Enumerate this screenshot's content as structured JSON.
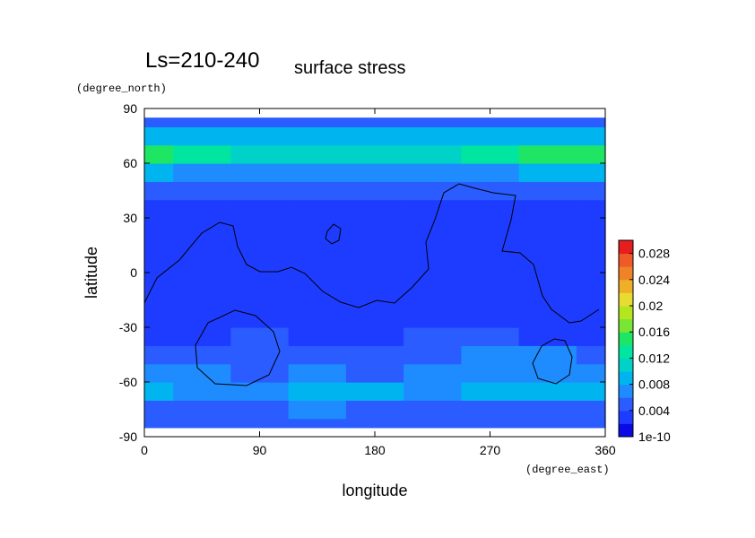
{
  "chart_data": {
    "type": "contour",
    "title": "Ls=210-240",
    "subtitle": "surface stress",
    "x_label": "longitude",
    "x_unit": "(degree_east)",
    "y_label": "latitude",
    "y_unit": "(degree_north)",
    "xlim": [
      0,
      360
    ],
    "xticks": [
      0,
      90,
      180,
      270,
      360
    ],
    "ylim": [
      -90,
      90
    ],
    "yticks": [
      -90,
      -60,
      -30,
      0,
      30,
      60,
      90
    ],
    "x": [
      0,
      45,
      90,
      135,
      180,
      225,
      270,
      315,
      360
    ],
    "y": [
      -85,
      -75,
      -65,
      -55,
      -45,
      -35,
      -25,
      -15,
      -5,
      5,
      15,
      25,
      35,
      45,
      55,
      65,
      75,
      85
    ],
    "z": [
      [
        0.004,
        0.004,
        0.004,
        0.004,
        0.004,
        0.004,
        0.004,
        0.004,
        0.004
      ],
      [
        0.005,
        0.005,
        0.005,
        0.006,
        0.005,
        0.005,
        0.005,
        0.005,
        0.005
      ],
      [
        0.008,
        0.007,
        0.007,
        0.008,
        0.008,
        0.007,
        0.008,
        0.009,
        0.008
      ],
      [
        0.006,
        0.006,
        0.005,
        0.006,
        0.005,
        0.006,
        0.007,
        0.007,
        0.006
      ],
      [
        0.005,
        0.005,
        0.005,
        0.004,
        0.004,
        0.004,
        0.006,
        0.006,
        0.005
      ],
      [
        0.003,
        0.003,
        0.004,
        0.003,
        0.003,
        0.004,
        0.004,
        0.003,
        0.003
      ],
      [
        0.002,
        0.003,
        0.002,
        0.002,
        0.002,
        0.002,
        0.002,
        0.002,
        0.002
      ],
      [
        0.003,
        0.003,
        0.003,
        0.003,
        0.002,
        0.002,
        0.003,
        0.003,
        0.003
      ],
      [
        0.003,
        0.003,
        0.003,
        0.003,
        0.002,
        0.003,
        0.003,
        0.003,
        0.003
      ],
      [
        0.003,
        0.003,
        0.003,
        0.003,
        0.002,
        0.002,
        0.003,
        0.003,
        0.003
      ],
      [
        0.002,
        0.003,
        0.003,
        0.003,
        0.002,
        0.003,
        0.003,
        0.002,
        0.002
      ],
      [
        0.002,
        0.002,
        0.002,
        0.002,
        0.002,
        0.002,
        0.003,
        0.002,
        0.002
      ],
      [
        0.002,
        0.002,
        0.002,
        0.003,
        0.002,
        0.003,
        0.002,
        0.002,
        0.002
      ],
      [
        0.004,
        0.004,
        0.004,
        0.004,
        0.004,
        0.004,
        0.004,
        0.004,
        0.004
      ],
      [
        0.008,
        0.007,
        0.006,
        0.006,
        0.006,
        0.006,
        0.007,
        0.008,
        0.008
      ],
      [
        0.014,
        0.012,
        0.011,
        0.011,
        0.011,
        0.011,
        0.012,
        0.014,
        0.014
      ],
      [
        0.009,
        0.009,
        0.008,
        0.008,
        0.008,
        0.008,
        0.009,
        0.009,
        0.009
      ],
      [
        0.005,
        0.005,
        0.005,
        0.005,
        0.005,
        0.005,
        0.005,
        0.005,
        0.005
      ]
    ],
    "levels": [
      0,
      0.002,
      0.004,
      0.006,
      0.008,
      0.01,
      0.012,
      0.014,
      0.016,
      0.018,
      0.02,
      0.022,
      0.024,
      0.026,
      0.028,
      0.03
    ],
    "band_colors": [
      "#0a0ae6",
      "#1e3cff",
      "#2a5cff",
      "#1e8cff",
      "#00b4f0",
      "#00d2c8",
      "#00e6a0",
      "#1ee664",
      "#78e632",
      "#b4e61e",
      "#e6dc32",
      "#f0af28",
      "#f08228",
      "#f05a28",
      "#e61e1e"
    ],
    "colorbar_ticks": [
      {
        "value": 1e-10,
        "label": "1e-10"
      },
      0.004,
      0.008,
      0.012,
      0.016,
      0.02,
      0.024,
      0.028
    ]
  }
}
